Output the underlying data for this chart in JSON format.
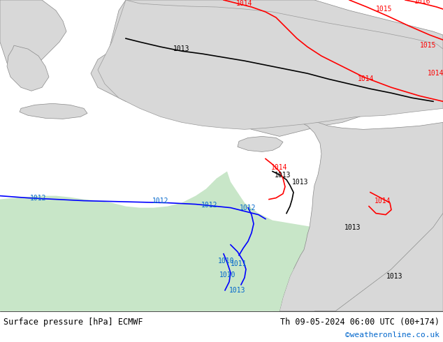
{
  "title_left": "Surface pressure [hPa] ECMWF",
  "title_right": "Th 09-05-2024 06:00 UTC (00+174)",
  "watermark": "©weatheronline.co.uk",
  "bg_sea_color": "#c8e6c8",
  "bg_land_gray": "#d8d8d8",
  "bg_land_light": "#e8e8e8",
  "contour_black_color": "#000000",
  "contour_red_color": "#ff0000",
  "contour_blue_color": "#0000ff",
  "label_black": "#000000",
  "label_red": "#ff0000",
  "label_blue": "#0000ff",
  "label_cyan_blue": "#0066cc",
  "footer_bg": "#ffffff",
  "watermark_color": "#0066cc",
  "figsize": [
    6.34,
    4.9
  ],
  "dpi": 100
}
